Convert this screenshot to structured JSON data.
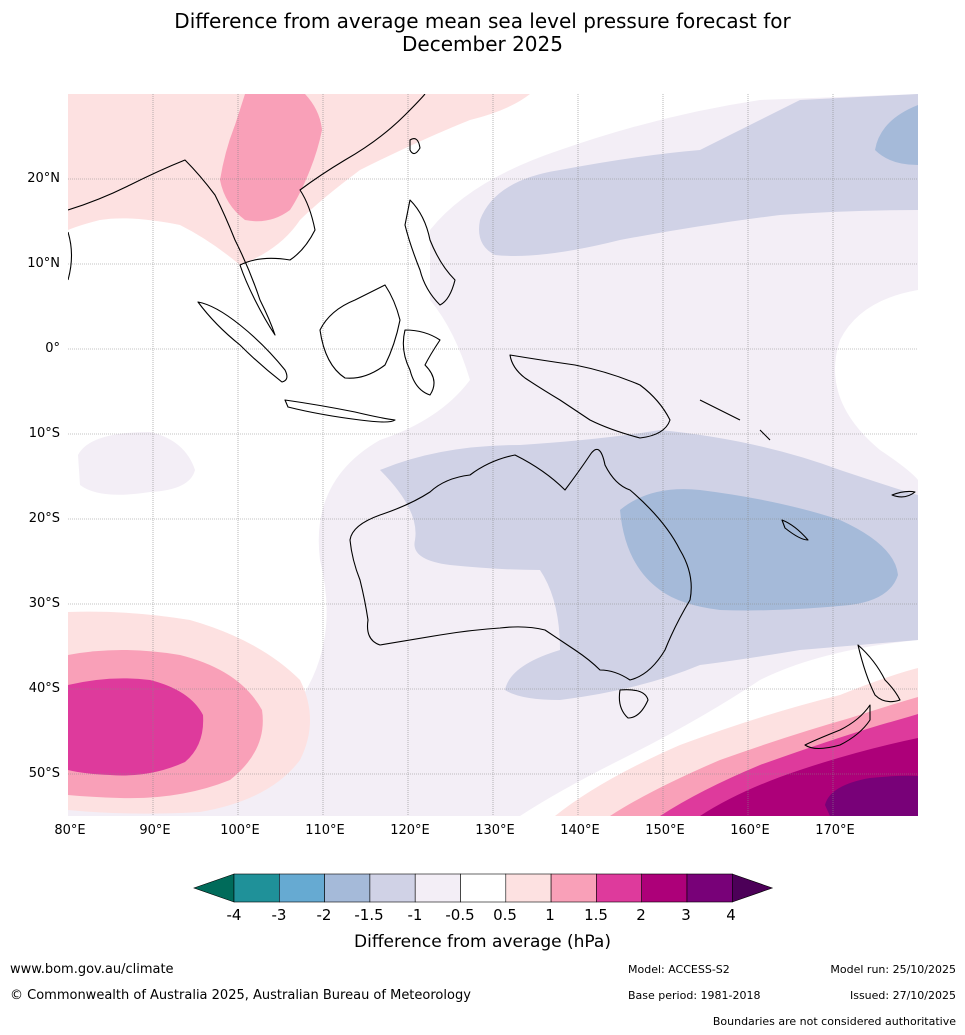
{
  "title": {
    "line1": "Difference from average mean sea level pressure forecast for",
    "line2": "December 2025"
  },
  "map": {
    "lat_labels": [
      "20°N",
      "10°N",
      "0°",
      "10°S",
      "20°S",
      "30°S",
      "40°S",
      "50°S"
    ],
    "lon_labels": [
      "80°E",
      "90°E",
      "100°E",
      "110°E",
      "120°E",
      "130°E",
      "140°E",
      "150°E",
      "160°E",
      "170°E"
    ],
    "extent": {
      "lon_min": 80,
      "lon_max": 180,
      "lat_min": -55,
      "lat_max": 30
    }
  },
  "colorbar": {
    "title": "Difference from average (hPa)",
    "ticks": [
      "-4",
      "-3",
      "-2",
      "-1.5",
      "-1",
      "-0.5",
      "0.5",
      "1",
      "1.5",
      "2",
      "3",
      "4"
    ],
    "colors": [
      "#006b5a",
      "#1f9199",
      "#66aad2",
      "#a5bad9",
      "#d0d2e6",
      "#f3eef6",
      "#ffffff",
      "#fde1e1",
      "#f9a0b8",
      "#de3a9c",
      "#ad0079",
      "#780178",
      "#4c0058"
    ]
  },
  "footer": {
    "url": "www.bom.gov.au/climate",
    "copyright": "© Commonwealth of Australia 2025, Australian Bureau of Meteorology",
    "model": "Model: ACCESS-S2",
    "base_period": "Base period: 1981-2018",
    "model_run": "Model run: 25/10/2025",
    "issued": "Issued: 27/10/2025",
    "disclaimer": "Boundaries are not considered authoritative"
  }
}
